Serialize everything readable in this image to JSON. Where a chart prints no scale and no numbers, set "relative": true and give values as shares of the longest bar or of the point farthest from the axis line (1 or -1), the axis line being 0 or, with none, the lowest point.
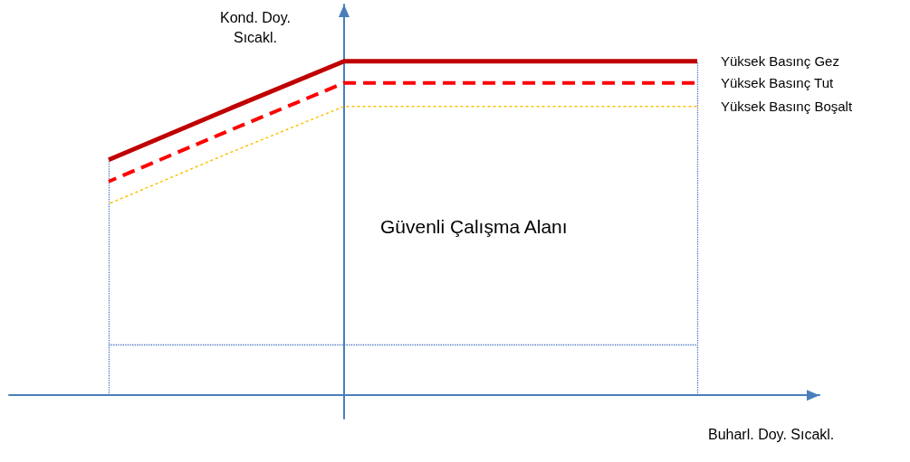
{
  "chart_data": {
    "type": "line",
    "relative": true,
    "xlabel": "Buharl. Doy. Sıcakl.",
    "ylabel": "Kond. Doy. Sıcakl.",
    "categories": [
      null,
      null,
      null,
      null,
      null,
      null
    ],
    "series": [
      {
        "name": "Yüksek Basınç Gez",
        "color": "#c00000",
        "line_style": "solid",
        "values": [
          0.705,
          0.854,
          1,
          1,
          1,
          1
        ]
      },
      {
        "name": "Yüksek Basınç Tut",
        "color": "#ff0000",
        "line_style": "dashed",
        "values": [
          0.64,
          0.789,
          0.935,
          0.935,
          0.935,
          0.935
        ]
      },
      {
        "name": "Yüksek Basınç Boşalt",
        "color": "#ffc000",
        "line_style": "dotted",
        "values": [
          0.573,
          0.722,
          0.865,
          0.865,
          0.865,
          0.865
        ]
      }
    ],
    "ref_lines": [
      {
        "axis": "y",
        "value": 0.154,
        "color": "#4472c4",
        "line_style": "dotted"
      }
    ],
    "annotations": [
      "Güvenli Çalışma Alanı"
    ],
    "grid": false,
    "legend": false,
    "marker": "none"
  }
}
